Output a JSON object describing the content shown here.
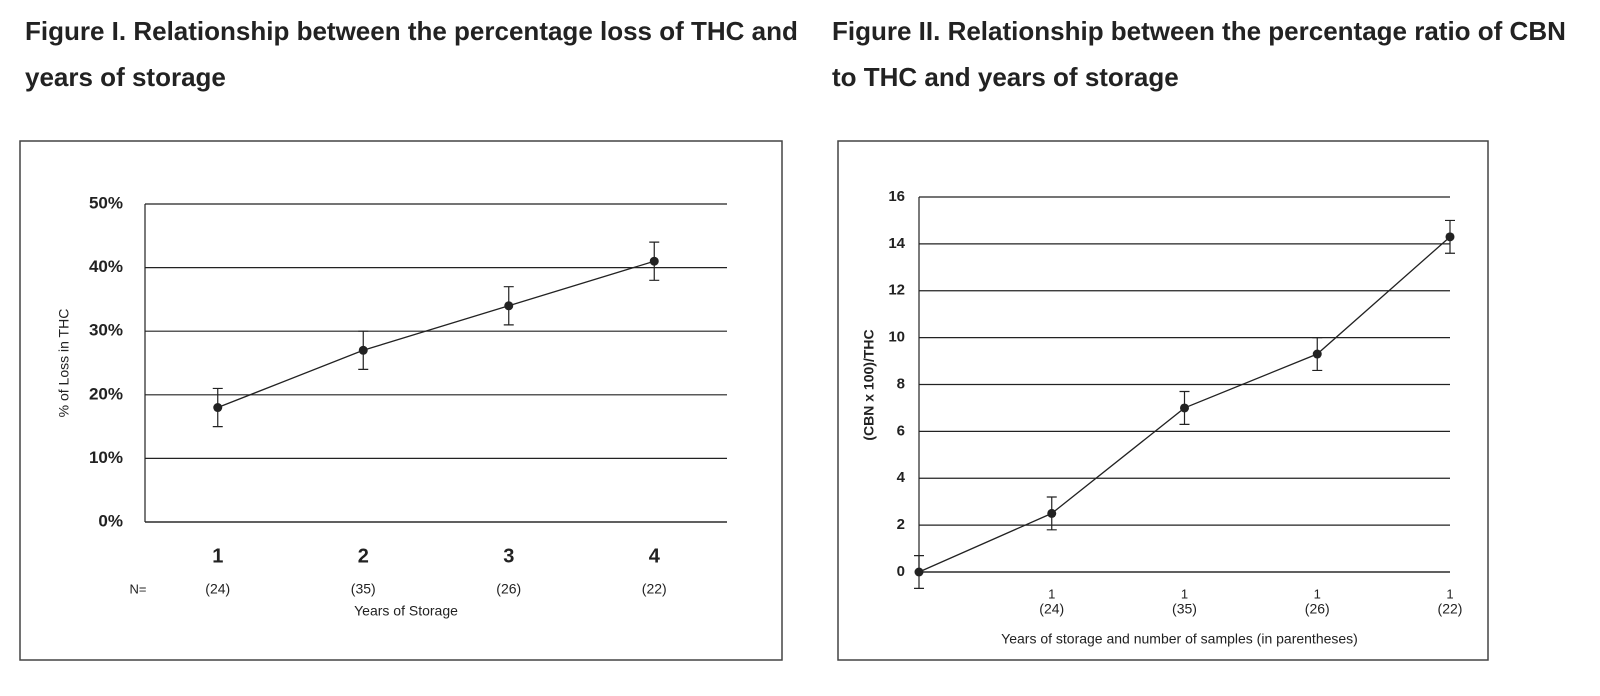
{
  "chart_data": [
    {
      "type": "line",
      "title": "Figure I. Relationship between the percentage loss of THC and years of storage",
      "y_label": "% of Loss in THC",
      "x_label": "Years of Storage",
      "n_label": "N=",
      "categories": [
        "1",
        "2",
        "3",
        "4"
      ],
      "sample_counts": [
        "(24)",
        "(35)",
        "(26)",
        "(22)"
      ],
      "values": [
        18,
        27,
        34,
        41
      ],
      "errors": [
        3,
        3,
        3,
        3
      ],
      "color": "#222222",
      "ylim": [
        0,
        50
      ],
      "yticks": [
        {
          "value": 0,
          "label": "0%"
        },
        {
          "value": 10,
          "label": "10%"
        },
        {
          "value": 20,
          "label": "20%"
        },
        {
          "value": 30,
          "label": "30%"
        },
        {
          "value": 40,
          "label": "40%"
        },
        {
          "value": 50,
          "label": "50%"
        }
      ],
      "grid": true
    },
    {
      "type": "line",
      "title": "Figure II. Relationship between the percentage ratio of CBN to THC and years of storage",
      "y_label": "(CBN x 100)/THC",
      "x_label": "Years of storage and number of samples (in parentheses)",
      "categories": [
        null,
        "1",
        "1",
        "1",
        "1"
      ],
      "sample_counts": [
        null,
        "(24)",
        "(35)",
        "(26)",
        "(22)"
      ],
      "values": [
        0,
        2.5,
        7,
        9.3,
        14.3
      ],
      "errors": [
        0.7,
        0.7,
        0.7,
        0.7,
        0.7
      ],
      "color": "#222222",
      "ylim": [
        0,
        16
      ],
      "yticks": [
        0,
        2,
        4,
        6,
        8,
        10,
        12,
        14,
        16
      ],
      "grid": true
    }
  ]
}
